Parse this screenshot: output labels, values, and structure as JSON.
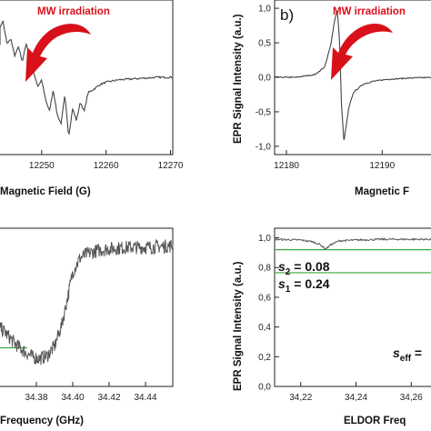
{
  "chart_data": [
    {
      "id": "a",
      "type": "line",
      "title": "",
      "xlabel": "Magnetic Field (G)",
      "ylabel": "",
      "xlim": [
        12240,
        12276
      ],
      "ylim": [
        -1.1,
        1.1
      ],
      "xticks": [
        12250,
        12260,
        12270
      ],
      "tick_labels": [
        "12250",
        "12260",
        "12270"
      ],
      "annotations": [
        {
          "text": "MW irradiation"
        }
      ],
      "series": [
        {
          "x": [
            12240,
            12242.0,
            12242.8,
            12243.4,
            12244.0,
            12244.6,
            12245.2,
            12245.8,
            12246.4,
            12247.0,
            12247.6,
            12248.2,
            12248.8,
            12249.4,
            12250.0,
            12250.6,
            12251.2,
            12251.8,
            12252.4,
            12253.0,
            12253.6,
            12254.2,
            12254.8,
            12255.4,
            12256.0,
            12256.6,
            12257.2,
            12258.0,
            12259.0,
            12260.0,
            12262.0,
            12265.0,
            12268.0,
            12272.0,
            12276.0
          ],
          "values": [
            0.6,
            0.72,
            0.5,
            0.78,
            0.9,
            0.55,
            0.62,
            0.35,
            0.5,
            0.25,
            0.55,
            0.3,
            0.05,
            -0.15,
            -0.05,
            -0.35,
            -0.55,
            -0.2,
            -0.6,
            -0.75,
            -0.3,
            -0.95,
            -0.5,
            -0.7,
            -0.4,
            -0.55,
            -0.25,
            -0.2,
            -0.12,
            -0.08,
            -0.04,
            -0.02,
            0.0,
            0.0,
            0.0
          ]
        }
      ]
    },
    {
      "id": "b",
      "type": "line",
      "title": "",
      "xlabel": "Magnetic F",
      "ylabel": "EPR Signal Intensity (a.u.)",
      "xlim": [
        12178,
        12199
      ],
      "ylim": [
        -1.12,
        1.12
      ],
      "xticks": [
        12180,
        12190
      ],
      "tick_labels_x": [
        "12180",
        "12190"
      ],
      "yticks": [
        1.0,
        0.5,
        0.0,
        -0.5,
        -1.0
      ],
      "tick_labels_y": [
        "1,0",
        "0,5",
        "0,0",
        "-0,5",
        "-1,0"
      ],
      "panel_label": "b)",
      "annotations": [
        {
          "text": "MW irradiation"
        }
      ],
      "series": [
        {
          "x": [
            12178,
            12181.0,
            12183.0,
            12184.0,
            12184.6,
            12185.0,
            12185.3,
            12185.55,
            12185.75,
            12186.0,
            12186.2,
            12186.5,
            12187.0,
            12188.0,
            12189.0,
            12190.5,
            12193.0,
            12196.0,
            12199.0
          ],
          "values": [
            0.0,
            0.0,
            0.04,
            0.15,
            0.45,
            0.8,
            0.98,
            0.55,
            -0.4,
            -0.92,
            -0.75,
            -0.45,
            -0.22,
            -0.1,
            -0.06,
            -0.03,
            -0.01,
            0.0,
            0.0
          ]
        }
      ]
    },
    {
      "id": "c",
      "type": "line",
      "title": "",
      "xlabel": "Frequency (GHz)",
      "ylabel": "",
      "xlim": [
        34.355,
        34.455
      ],
      "ylim": [
        0,
        1.0
      ],
      "xticks": [
        34.38,
        34.4,
        34.42,
        34.44
      ],
      "tick_labels": [
        "34.38",
        "34.40",
        "34.42",
        "34.44"
      ],
      "series": [
        {
          "x": [
            34.355,
            34.362,
            34.368,
            34.374,
            34.378,
            34.382,
            34.386,
            34.39,
            34.394,
            34.398,
            34.4,
            34.404,
            34.408,
            34.414,
            34.42,
            34.43,
            34.44,
            34.455
          ],
          "values": [
            0.42,
            0.36,
            0.28,
            0.22,
            0.19,
            0.18,
            0.2,
            0.26,
            0.4,
            0.62,
            0.74,
            0.83,
            0.86,
            0.88,
            0.89,
            0.9,
            0.9,
            0.91
          ]
        }
      ],
      "reference_line": {
        "y": 0.25,
        "color": "#3aa63a"
      }
    },
    {
      "id": "d",
      "type": "line",
      "title": "",
      "xlabel": "ELDOR Freq",
      "ylabel": "EPR Signal Intensity (a.u.)",
      "xlim": [
        34.2,
        34.28
      ],
      "ylim": [
        0,
        1.04
      ],
      "xticks": [
        34.22,
        34.24,
        34.26
      ],
      "tick_labels_x": [
        "34,22",
        "34,24",
        "34,26"
      ],
      "yticks": [
        1.0,
        0.8,
        0.6,
        0.4,
        0.2,
        0.0
      ],
      "tick_labels_y": [
        "1,0",
        "0,8",
        "0,6",
        "0,4",
        "0,2",
        "0,0"
      ],
      "series": [
        {
          "x": [
            34.2,
            34.21,
            34.22,
            34.224,
            34.227,
            34.229,
            34.231,
            34.234,
            34.24,
            34.25,
            34.26,
            34.28
          ],
          "values": [
            0.99,
            0.99,
            0.985,
            0.975,
            0.955,
            0.925,
            0.955,
            0.98,
            0.985,
            0.99,
            0.99,
            0.99
          ]
        }
      ],
      "reference_lines": [
        {
          "y": 0.92,
          "color": "#3aa63a"
        },
        {
          "y": 0.765,
          "color": "#3aa63a"
        }
      ],
      "annotations": [
        {
          "text": "s",
          "sub": "2",
          "value": " = 0.08"
        },
        {
          "text": "s",
          "sub": "1",
          "value": " = 0.24"
        },
        {
          "text": "s",
          "sub": "eff",
          "value": " ="
        }
      ]
    }
  ]
}
